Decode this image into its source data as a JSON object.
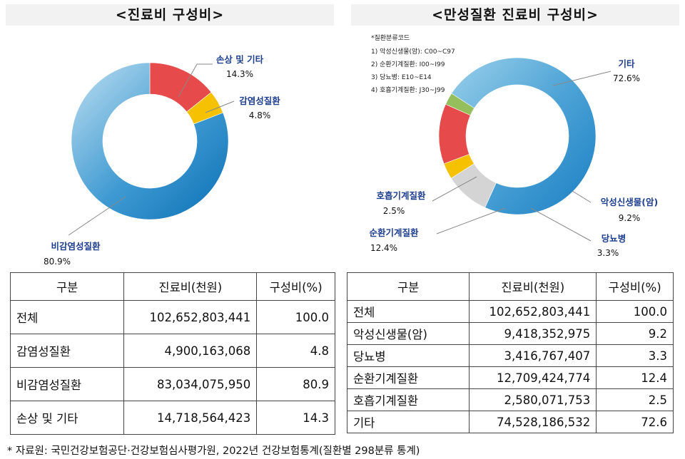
{
  "chart_data": [
    {
      "type": "pie",
      "title": "<진료비 구성비>",
      "categories": [
        "손상 및 기타",
        "감염성질환",
        "비감염성질환"
      ],
      "values": [
        14.3,
        4.8,
        80.9
      ],
      "value_labels": [
        "14.3%",
        "4.8%",
        "80.9%"
      ],
      "colors": [
        "#e64a4a",
        "#f6c200",
        "#1a7fc3"
      ]
    },
    {
      "type": "pie",
      "title": "<만성질환 진료비 구성비>",
      "categories": [
        "기타",
        "악성신생물(암)",
        "당뇨병",
        "순환기계질환",
        "호흡기계질환"
      ],
      "values": [
        72.6,
        9.2,
        3.3,
        12.4,
        2.5
      ],
      "value_labels": [
        "72.6%",
        "9.2%",
        "3.3%",
        "12.4%",
        "2.5%"
      ],
      "colors": [
        "#7cc4e2",
        "#d4d4d4",
        "#f6c200",
        "#e64a4a",
        "#94bf5c"
      ],
      "note_lines": [
        "*질환분류코드",
        "1) 악성신생물(암): C00~C97",
        "2) 순환기계질환: I00~I99",
        "3) 당뇨병: E10~E14",
        "4) 호흡기계질환: J30~J99"
      ]
    }
  ],
  "tables": {
    "left": {
      "headers": [
        "구분",
        "진료비(천원)",
        "구성비(%)"
      ],
      "rows": [
        [
          "전체",
          "102,652,803,441",
          "100.0"
        ],
        [
          "감염성질환",
          "4,900,163,068",
          "4.8"
        ],
        [
          "비감염성질환",
          "83,034,075,950",
          "80.9"
        ],
        [
          "손상 및 기타",
          "14,718,564,423",
          "14.3"
        ]
      ]
    },
    "right": {
      "headers": [
        "구분",
        "진료비(천원)",
        "구성비(%)"
      ],
      "rows": [
        [
          "전체",
          "102,652,803,441",
          "100.0"
        ],
        [
          "악성신생물(암)",
          "9,418,352,975",
          "9.2"
        ],
        [
          "당뇨병",
          "3,416,767,407",
          "3.3"
        ],
        [
          "순환기계질환",
          "12,709,424,774",
          "12.4"
        ],
        [
          "호흡기계질환",
          "2,580,071,753",
          "2.5"
        ],
        [
          "기타",
          "74,528,186,532",
          "72.6"
        ]
      ]
    }
  },
  "footnote": "* 자료원: 국민건강보험공단·건강보험심사평가원, 2022년 건강보험통계(질환별 298분류 통계)"
}
